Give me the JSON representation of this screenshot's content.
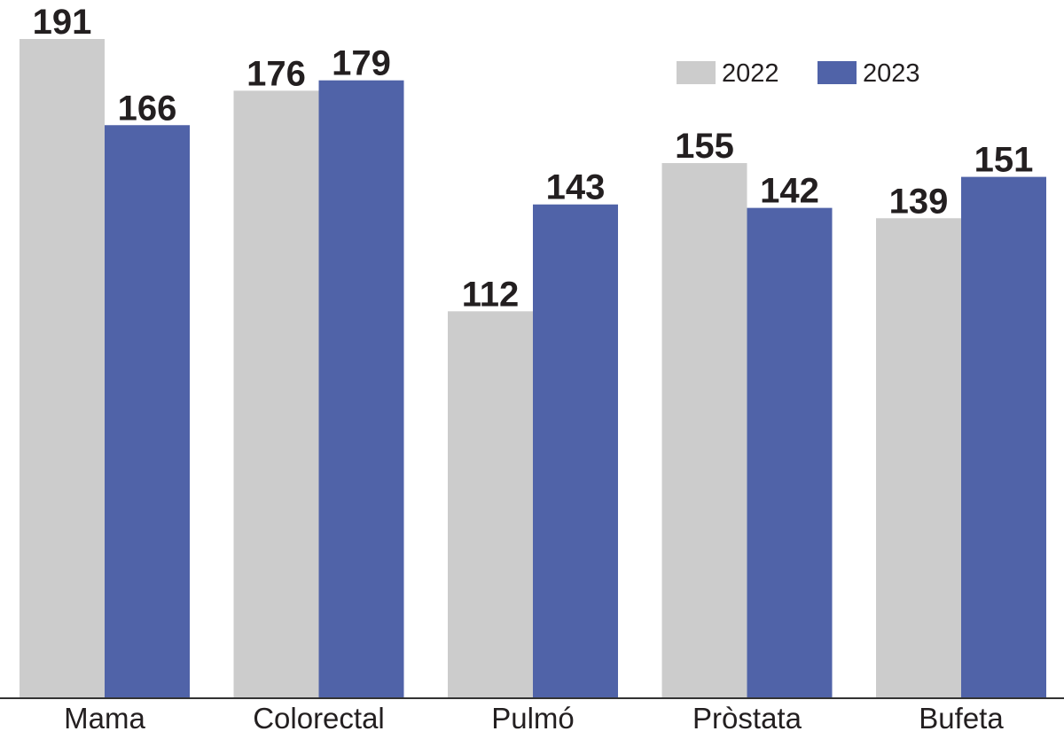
{
  "chart_data": {
    "type": "bar",
    "categories": [
      "Mama",
      "Colorectal",
      "Pulmó",
      "Pròstata",
      "Bufeta"
    ],
    "series": [
      {
        "name": "2022",
        "values": [
          191,
          176,
          112,
          155,
          139
        ],
        "color": "#cccccc"
      },
      {
        "name": "2023",
        "values": [
          166,
          179,
          143,
          142,
          151
        ],
        "color": "#5063a8"
      }
    ],
    "title": "",
    "xlabel": "",
    "ylabel": "",
    "ylim": [
      0,
      191
    ],
    "grid": false,
    "legend": "top-right",
    "data_labels": true,
    "y_axis_visible": false,
    "baseline_color": "#333333"
  }
}
